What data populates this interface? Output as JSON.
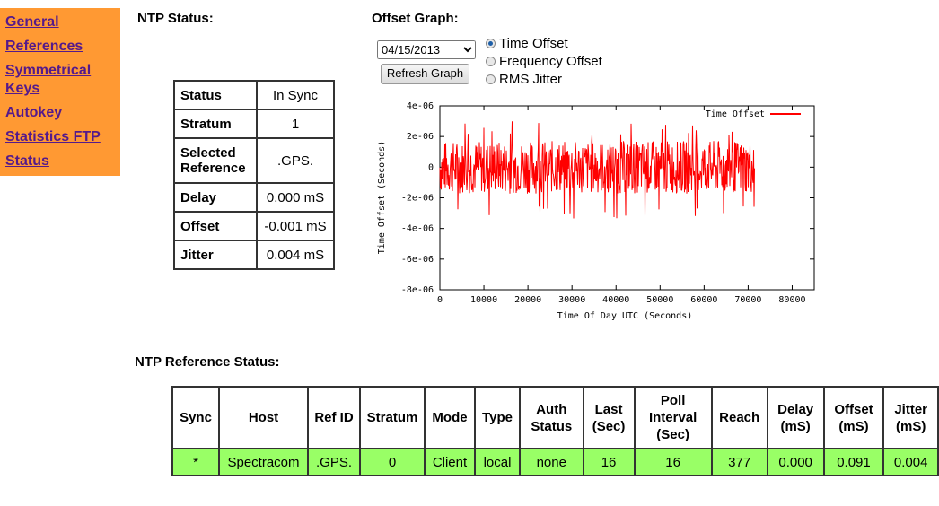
{
  "sidebar": {
    "items": [
      {
        "label": "General"
      },
      {
        "label": "References"
      },
      {
        "label": "Symmetrical Keys"
      },
      {
        "label": "Autokey"
      },
      {
        "label": "Statistics FTP"
      },
      {
        "label": "Status"
      }
    ],
    "bg_color": "#ff9933"
  },
  "ntp_status": {
    "title": "NTP Status:",
    "rows": [
      {
        "key": "Status",
        "value": "In Sync"
      },
      {
        "key": "Stratum",
        "value": "1"
      },
      {
        "key": "Selected Reference",
        "value": ".GPS."
      },
      {
        "key": "Delay",
        "value": "0.000 mS"
      },
      {
        "key": "Offset",
        "value": "-0.001 mS"
      },
      {
        "key": "Jitter",
        "value": "0.004 mS"
      }
    ]
  },
  "offset_graph": {
    "title": "Offset Graph:",
    "date_select": "04/15/2013",
    "refresh_button": "Refresh Graph",
    "radios": [
      {
        "label": "Time Offset",
        "checked": true
      },
      {
        "label": "Frequency Offset",
        "checked": false
      },
      {
        "label": "RMS Jitter",
        "checked": false
      }
    ]
  },
  "chart_data": {
    "type": "line",
    "title": "",
    "xlabel": "Time Of Day UTC (Seconds)",
    "ylabel": "Time Offset (Seconds)",
    "xlim": [
      0,
      85000
    ],
    "ylim": [
      -8e-06,
      4e-06
    ],
    "x_ticks": [
      "0",
      "10000",
      "20000",
      "30000",
      "40000",
      "50000",
      "60000",
      "70000",
      "80000"
    ],
    "y_ticks": [
      "4e-06",
      "2e-06",
      "0",
      "-2e-06",
      "-4e-06",
      "-6e-06",
      "-8e-06"
    ],
    "grid": false,
    "legend": {
      "position": "top-right",
      "entries": [
        "Time Offset"
      ]
    },
    "series": [
      {
        "name": "Time Offset",
        "color": "#ff0000",
        "x_range": [
          0,
          71500
        ],
        "typical_band": [
          -1.5e-06,
          1.5e-06
        ],
        "max": 3e-06,
        "min": -3.4e-06
      }
    ]
  },
  "ref_status": {
    "title": "NTP Reference Status:",
    "headers": [
      "Sync",
      "Host",
      "Ref ID",
      "Stratum",
      "Mode",
      "Type",
      "Auth Status",
      "Last (Sec)",
      "Poll Interval (Sec)",
      "Reach",
      "Delay (mS)",
      "Offset (mS)",
      "Jitter (mS)"
    ],
    "rows": [
      [
        "*",
        "Spectracom",
        ".GPS.",
        "0",
        "Client",
        "local",
        "none",
        "16",
        "16",
        "377",
        "0.000",
        "0.091",
        "0.004"
      ]
    ],
    "row_color": "#99ff66"
  }
}
